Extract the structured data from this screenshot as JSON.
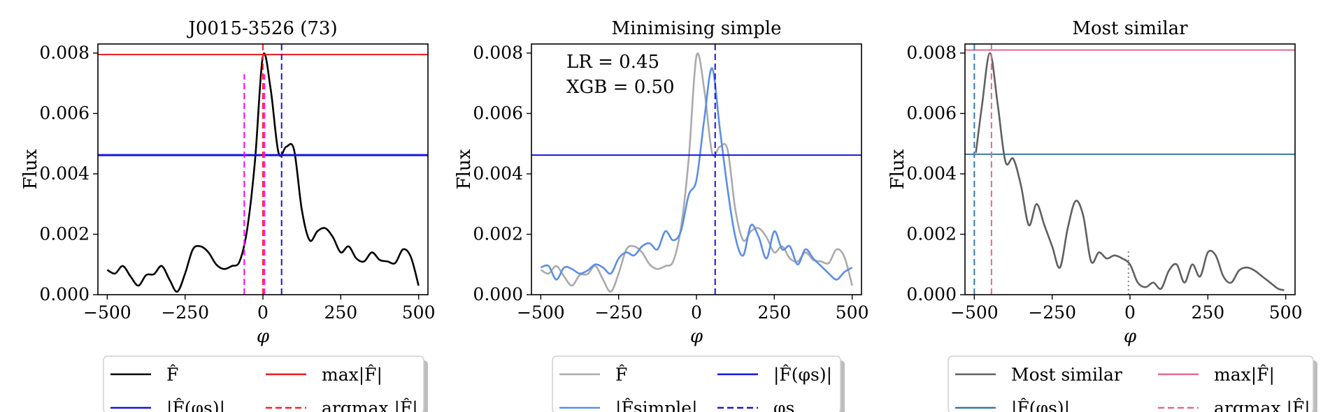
{
  "chart_data": [
    {
      "type": "line",
      "title": "J0015-3526 (73)",
      "xlabel": "φ",
      "ylabel": "Flux",
      "xlim": [
        -530,
        530
      ],
      "ylim": [
        0,
        0.0083
      ],
      "xticks": [
        -500,
        -250,
        0,
        250,
        500
      ],
      "xtick_labels": [
        "−500",
        "−250",
        "0",
        "250",
        "500"
      ],
      "yticks": [
        0,
        0.002,
        0.004,
        0.006,
        0.008
      ],
      "ytick_labels": [
        "0.000",
        "0.002",
        "0.004",
        "0.006",
        "0.008"
      ],
      "series": [
        {
          "name": "F̂",
          "color": "#000000",
          "style": "solid",
          "x": [
            -500,
            -475,
            -450,
            -425,
            -400,
            -375,
            -350,
            -325,
            -300,
            -275,
            -250,
            -225,
            -200,
            -175,
            -150,
            -125,
            -100,
            -75,
            -50,
            -25,
            0,
            25,
            50,
            75,
            100,
            125,
            150,
            175,
            200,
            225,
            250,
            275,
            300,
            325,
            350,
            375,
            400,
            425,
            450,
            475,
            500
          ],
          "y": [
            0.00082,
            0.0007,
            0.00095,
            0.0006,
            0.0003,
            0.00065,
            0.00068,
            0.00095,
            0.0005,
            0.0001,
            0.0007,
            0.0015,
            0.0016,
            0.0014,
            0.001,
            0.00085,
            0.00095,
            0.0011,
            0.0022,
            0.0045,
            0.0079,
            0.0068,
            0.0047,
            0.0049,
            0.0048,
            0.0028,
            0.0018,
            0.0021,
            0.0022,
            0.0019,
            0.0014,
            0.0016,
            0.0012,
            0.0011,
            0.0014,
            0.00115,
            0.0011,
            0.00105,
            0.0015,
            0.00125,
            0.0003
          ]
        }
      ],
      "hlines": [
        {
          "name": "max|F̂|",
          "y": 0.00795,
          "color": "#e8191c",
          "style": "solid"
        },
        {
          "name": "|F̂(φs)|",
          "y": 0.00462,
          "color": "#1515e0",
          "style": "solid",
          "thick": true
        }
      ],
      "vlines": [
        {
          "x": 0,
          "color": "#ff2020",
          "style": "dashed",
          "y0": 0,
          "y1": 0.0083
        },
        {
          "x": 60,
          "color": "#1515e0",
          "style": "dashed",
          "y0": 0,
          "y1": 0.0083
        },
        {
          "x": -60,
          "color": "#ff00ff",
          "style": "dashed",
          "y0": 0,
          "y1": 0.0073
        },
        {
          "x": 5,
          "color": "#ff00ff",
          "style": "dashed",
          "y0": 0,
          "y1": 0.0073
        }
      ],
      "legend": {
        "placement": "below",
        "items": [
          {
            "label": "F̂",
            "color": "#000000",
            "style": "solid"
          },
          {
            "label": "max|F̂|",
            "color": "#e8191c",
            "style": "solid"
          },
          {
            "label": "|F̂(φs)|",
            "color": "#1515e0",
            "style": "solid"
          },
          {
            "label": "argmax |F̂|",
            "color": "#ff2020",
            "style": "dashed"
          }
        ]
      }
    },
    {
      "type": "line",
      "title": "Minimising simple",
      "xlabel": "φ",
      "ylabel": "Flux",
      "xlim": [
        -530,
        530
      ],
      "ylim": [
        0,
        0.0083
      ],
      "xticks": [
        -500,
        -250,
        0,
        250,
        500
      ],
      "xtick_labels": [
        "−500",
        "−250",
        "0",
        "250",
        "500"
      ],
      "yticks": [
        0,
        0.002,
        0.004,
        0.006,
        0.008
      ],
      "ytick_labels": [
        "0.000",
        "0.002",
        "0.004",
        "0.006",
        "0.008"
      ],
      "annotations": [
        "LR = 0.45",
        "XGB = 0.50"
      ],
      "series": [
        {
          "name": "F̂",
          "color": "#aaaaaa",
          "style": "solid",
          "x": [
            -500,
            -475,
            -450,
            -425,
            -400,
            -375,
            -350,
            -325,
            -300,
            -275,
            -250,
            -225,
            -200,
            -175,
            -150,
            -125,
            -100,
            -75,
            -50,
            -25,
            0,
            25,
            50,
            75,
            100,
            125,
            150,
            175,
            200,
            225,
            250,
            275,
            300,
            325,
            350,
            375,
            400,
            425,
            450,
            475,
            500
          ],
          "y": [
            0.00082,
            0.0007,
            0.00095,
            0.0006,
            0.0003,
            0.00065,
            0.00068,
            0.00095,
            0.0005,
            0.0001,
            0.0007,
            0.0015,
            0.0016,
            0.0014,
            0.001,
            0.00085,
            0.00095,
            0.0011,
            0.0022,
            0.0045,
            0.0079,
            0.0068,
            0.0047,
            0.0049,
            0.0048,
            0.0028,
            0.0018,
            0.0021,
            0.0022,
            0.0019,
            0.0014,
            0.0016,
            0.0012,
            0.0011,
            0.0014,
            0.00115,
            0.0011,
            0.00105,
            0.0015,
            0.00125,
            0.0003
          ]
        },
        {
          "name": "|F̂simple|",
          "color": "#5b8ee6",
          "style": "solid",
          "x": [
            -500,
            -475,
            -450,
            -425,
            -400,
            -375,
            -350,
            -325,
            -300,
            -275,
            -250,
            -225,
            -200,
            -175,
            -150,
            -125,
            -100,
            -75,
            -50,
            -25,
            0,
            25,
            50,
            75,
            100,
            125,
            150,
            175,
            200,
            225,
            250,
            275,
            300,
            325,
            350,
            375,
            400,
            425,
            450,
            475,
            500
          ],
          "y": [
            0.0009,
            0.00095,
            0.0005,
            0.0009,
            0.00085,
            0.0007,
            0.0008,
            0.001,
            0.0009,
            0.0007,
            0.0012,
            0.0014,
            0.0013,
            0.0016,
            0.0017,
            0.0015,
            0.0021,
            0.0018,
            0.0021,
            0.0033,
            0.0038,
            0.0058,
            0.0075,
            0.0055,
            0.0035,
            0.0019,
            0.0013,
            0.0023,
            0.0019,
            0.0012,
            0.0021,
            0.0015,
            0.0016,
            0.001,
            0.0015,
            0.0012,
            0.00095,
            0.0007,
            0.0005,
            0.00075,
            0.0009
          ]
        }
      ],
      "hlines": [
        {
          "name": "|F̂(φs)|",
          "y": 0.00462,
          "color": "#1515e0",
          "style": "solid"
        }
      ],
      "vlines": [
        {
          "x": 60,
          "color": "#1515e0",
          "style": "dashed",
          "y0": 0,
          "y1": 0.0083
        }
      ],
      "legend": {
        "placement": "below",
        "items": [
          {
            "label": "F̂",
            "color": "#aaaaaa",
            "style": "solid"
          },
          {
            "label": "|F̂(φs)|",
            "color": "#1515e0",
            "style": "solid"
          },
          {
            "label": "|F̂simple|",
            "color": "#5b8ee6",
            "style": "solid"
          },
          {
            "label": "φs",
            "color": "#1515e0",
            "style": "dashed"
          }
        ]
      }
    },
    {
      "type": "line",
      "title": "Most similar",
      "xlabel": "φ",
      "ylabel": "Flux",
      "xlim": [
        -530,
        530
      ],
      "ylim": [
        0,
        0.0083
      ],
      "xticks": [
        -500,
        -250,
        0,
        250,
        500
      ],
      "xtick_labels": [
        "−500",
        "−250",
        "0",
        "250",
        "500"
      ],
      "yticks": [
        0,
        0.002,
        0.004,
        0.006,
        0.008
      ],
      "ytick_labels": [
        "0.000",
        "0.002",
        "0.004",
        "0.006",
        "0.008"
      ],
      "series": [
        {
          "name": "Most similar",
          "color": "#606060",
          "style": "solid",
          "x": [
            -495,
            -475,
            -450,
            -425,
            -400,
            -375,
            -350,
            -325,
            -300,
            -275,
            -250,
            -225,
            -200,
            -175,
            -150,
            -125,
            -100,
            -75,
            -50,
            -25,
            0,
            25,
            50,
            75,
            100,
            125,
            150,
            175,
            200,
            225,
            250,
            275,
            300,
            325,
            350,
            375,
            400,
            425,
            450,
            475,
            495
          ],
          "y": [
            0.0047,
            0.0063,
            0.008,
            0.0063,
            0.0044,
            0.0045,
            0.0036,
            0.0023,
            0.003,
            0.0023,
            0.0016,
            0.0009,
            0.0022,
            0.0031,
            0.0026,
            0.0011,
            0.0014,
            0.0012,
            0.0013,
            0.0012,
            0.001,
            0.0004,
            0.00025,
            0.0004,
            0.0002,
            0.0008,
            0.001,
            0.0004,
            0.001,
            0.0006,
            0.0014,
            0.0013,
            0.0006,
            0.0004,
            0.0008,
            0.0009,
            0.0008,
            0.0006,
            0.0004,
            0.0002,
            0.00015
          ]
        }
      ],
      "hlines": [
        {
          "name": "max|F̂|",
          "y": 0.0081,
          "color": "#e06a8e",
          "style": "solid"
        },
        {
          "name": "|F̂(φs)|",
          "y": 0.00465,
          "color": "#3a78a6",
          "style": "solid"
        }
      ],
      "vlines": [
        {
          "x": -500,
          "color": "#3a78a6",
          "style": "dashed",
          "y0": 0,
          "y1": 0.0083
        },
        {
          "x": -445,
          "color": "#e06a8e",
          "style": "dashed",
          "y0": 0,
          "y1": 0.0083
        },
        {
          "x": -5,
          "color": "#808080",
          "style": "dotted",
          "y0": 0,
          "y1": 0.0015
        }
      ],
      "legend": {
        "placement": "below",
        "items": [
          {
            "label": "Most similar",
            "color": "#606060",
            "style": "solid"
          },
          {
            "label": "max|F̂|",
            "color": "#e06a8e",
            "style": "solid"
          },
          {
            "label": "|F̂(φs)|",
            "color": "#3a78a6",
            "style": "solid"
          },
          {
            "label": "argmax |F̂|",
            "color": "#e06a8e",
            "style": "dashed"
          }
        ]
      }
    }
  ]
}
